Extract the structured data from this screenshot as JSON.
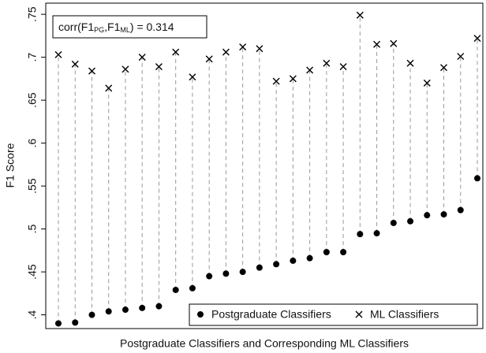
{
  "chart_data": {
    "type": "dot-pair",
    "x_label": "Postgraduate Classifiers and Corresponding ML Classifiers",
    "y_label": "F1 Score",
    "annotation": [
      "corr(F1",
      "PG",
      ",F1",
      "ML",
      ") = 0.314"
    ],
    "categories": [
      null,
      null,
      null,
      null,
      null,
      null,
      null,
      null,
      null,
      null,
      null,
      null,
      null,
      null,
      null,
      null,
      null,
      null,
      null,
      null,
      null,
      null,
      null,
      null,
      null,
      null
    ],
    "series": [
      {
        "name": "Postgraduate Classifiers",
        "color": "#000000",
        "marker": "circle",
        "values": [
          0.39,
          0.391,
          0.4,
          0.404,
          0.406,
          0.408,
          0.41,
          0.429,
          0.431,
          0.445,
          0.448,
          0.45,
          0.455,
          0.459,
          0.463,
          0.466,
          0.473,
          0.473,
          0.494,
          0.495,
          0.507,
          0.509,
          0.516,
          0.517,
          0.522,
          0.559
        ]
      },
      {
        "name": "ML Classifiers",
        "color": "#000000",
        "marker": "x",
        "values": [
          0.703,
          0.692,
          0.684,
          0.664,
          0.686,
          0.7,
          0.689,
          0.706,
          0.677,
          0.698,
          0.706,
          0.712,
          0.71,
          0.672,
          0.675,
          0.685,
          0.693,
          0.689,
          0.749,
          0.715,
          0.716,
          0.693,
          0.67,
          0.688,
          0.701,
          0.722
        ]
      }
    ],
    "ylim": [
      0.384,
      0.763
    ],
    "yticks": [
      {
        "value": 0.4,
        "label": ".4"
      },
      {
        "value": 0.45,
        "label": ".45"
      },
      {
        "value": 0.5,
        "label": ".5"
      },
      {
        "value": 0.55,
        "label": ".55"
      },
      {
        "value": 0.6,
        "label": ".6"
      },
      {
        "value": 0.65,
        "label": ".65"
      },
      {
        "value": 0.7,
        "label": ".7"
      },
      {
        "value": 0.75,
        "label": ".75"
      }
    ],
    "legend": "lower right"
  }
}
